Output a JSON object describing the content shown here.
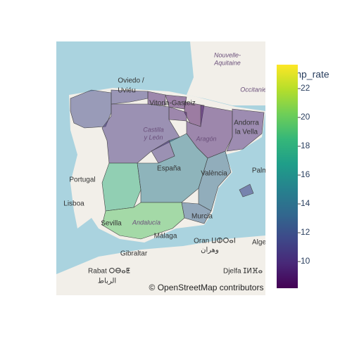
{
  "map": {
    "labels": {
      "nouvelle": "Nouvelle-",
      "aquitaine": "Aquitaine",
      "occitanie": "Occitanie",
      "oviedo": "Oviedo /",
      "uvieu": "Uviéu",
      "vitoria": "Vitoria-Gasteiz",
      "castilla": "Castilla",
      "yleon": "y León",
      "aragon": "Aragón",
      "andorra": "Andorra",
      "lavella": "la Vella",
      "portugal": "Portugal",
      "espana": "España",
      "valencia": "València",
      "palma": "Palma",
      "lisboa": "Lisboa",
      "sevilla": "Sevilla",
      "andalucia": "Andalucía",
      "malaga": "Málaga",
      "murcia": "Murcia",
      "oran": "Oran ⵡⵀⵔⴰⵏ",
      "oran_ar": "وهران",
      "alge": "Alge",
      "gibraltar": "Gibraltar",
      "rabat": "Rabat ⵔⴱⴰⵟ",
      "rabat_ar": "الرباط",
      "djelfa": "Djelfa ⵊⵍⴼⴰ"
    },
    "attribution": "© OpenStreetMap contributors"
  },
  "chart_data": {
    "type": "choropleth",
    "values": [
      11.5,
      11,
      9.5,
      9,
      8.5,
      9.5,
      10.5,
      9.5,
      10,
      10.5,
      18,
      14.5,
      13.5,
      13,
      19.5,
      10.5
    ],
    "colorbar_title": "unemp_rate",
    "clim": [
      8.15,
      23.66
    ],
    "cticks": [
      10,
      12,
      14,
      16,
      18,
      20,
      22
    ],
    "colorscale": [
      "#440154",
      "#482878",
      "#3e4989",
      "#31688e",
      "#26828e",
      "#1f9e89",
      "#35b779",
      "#6ece58",
      "#b5de2b",
      "#fde725"
    ],
    "opacity": 0.5
  }
}
